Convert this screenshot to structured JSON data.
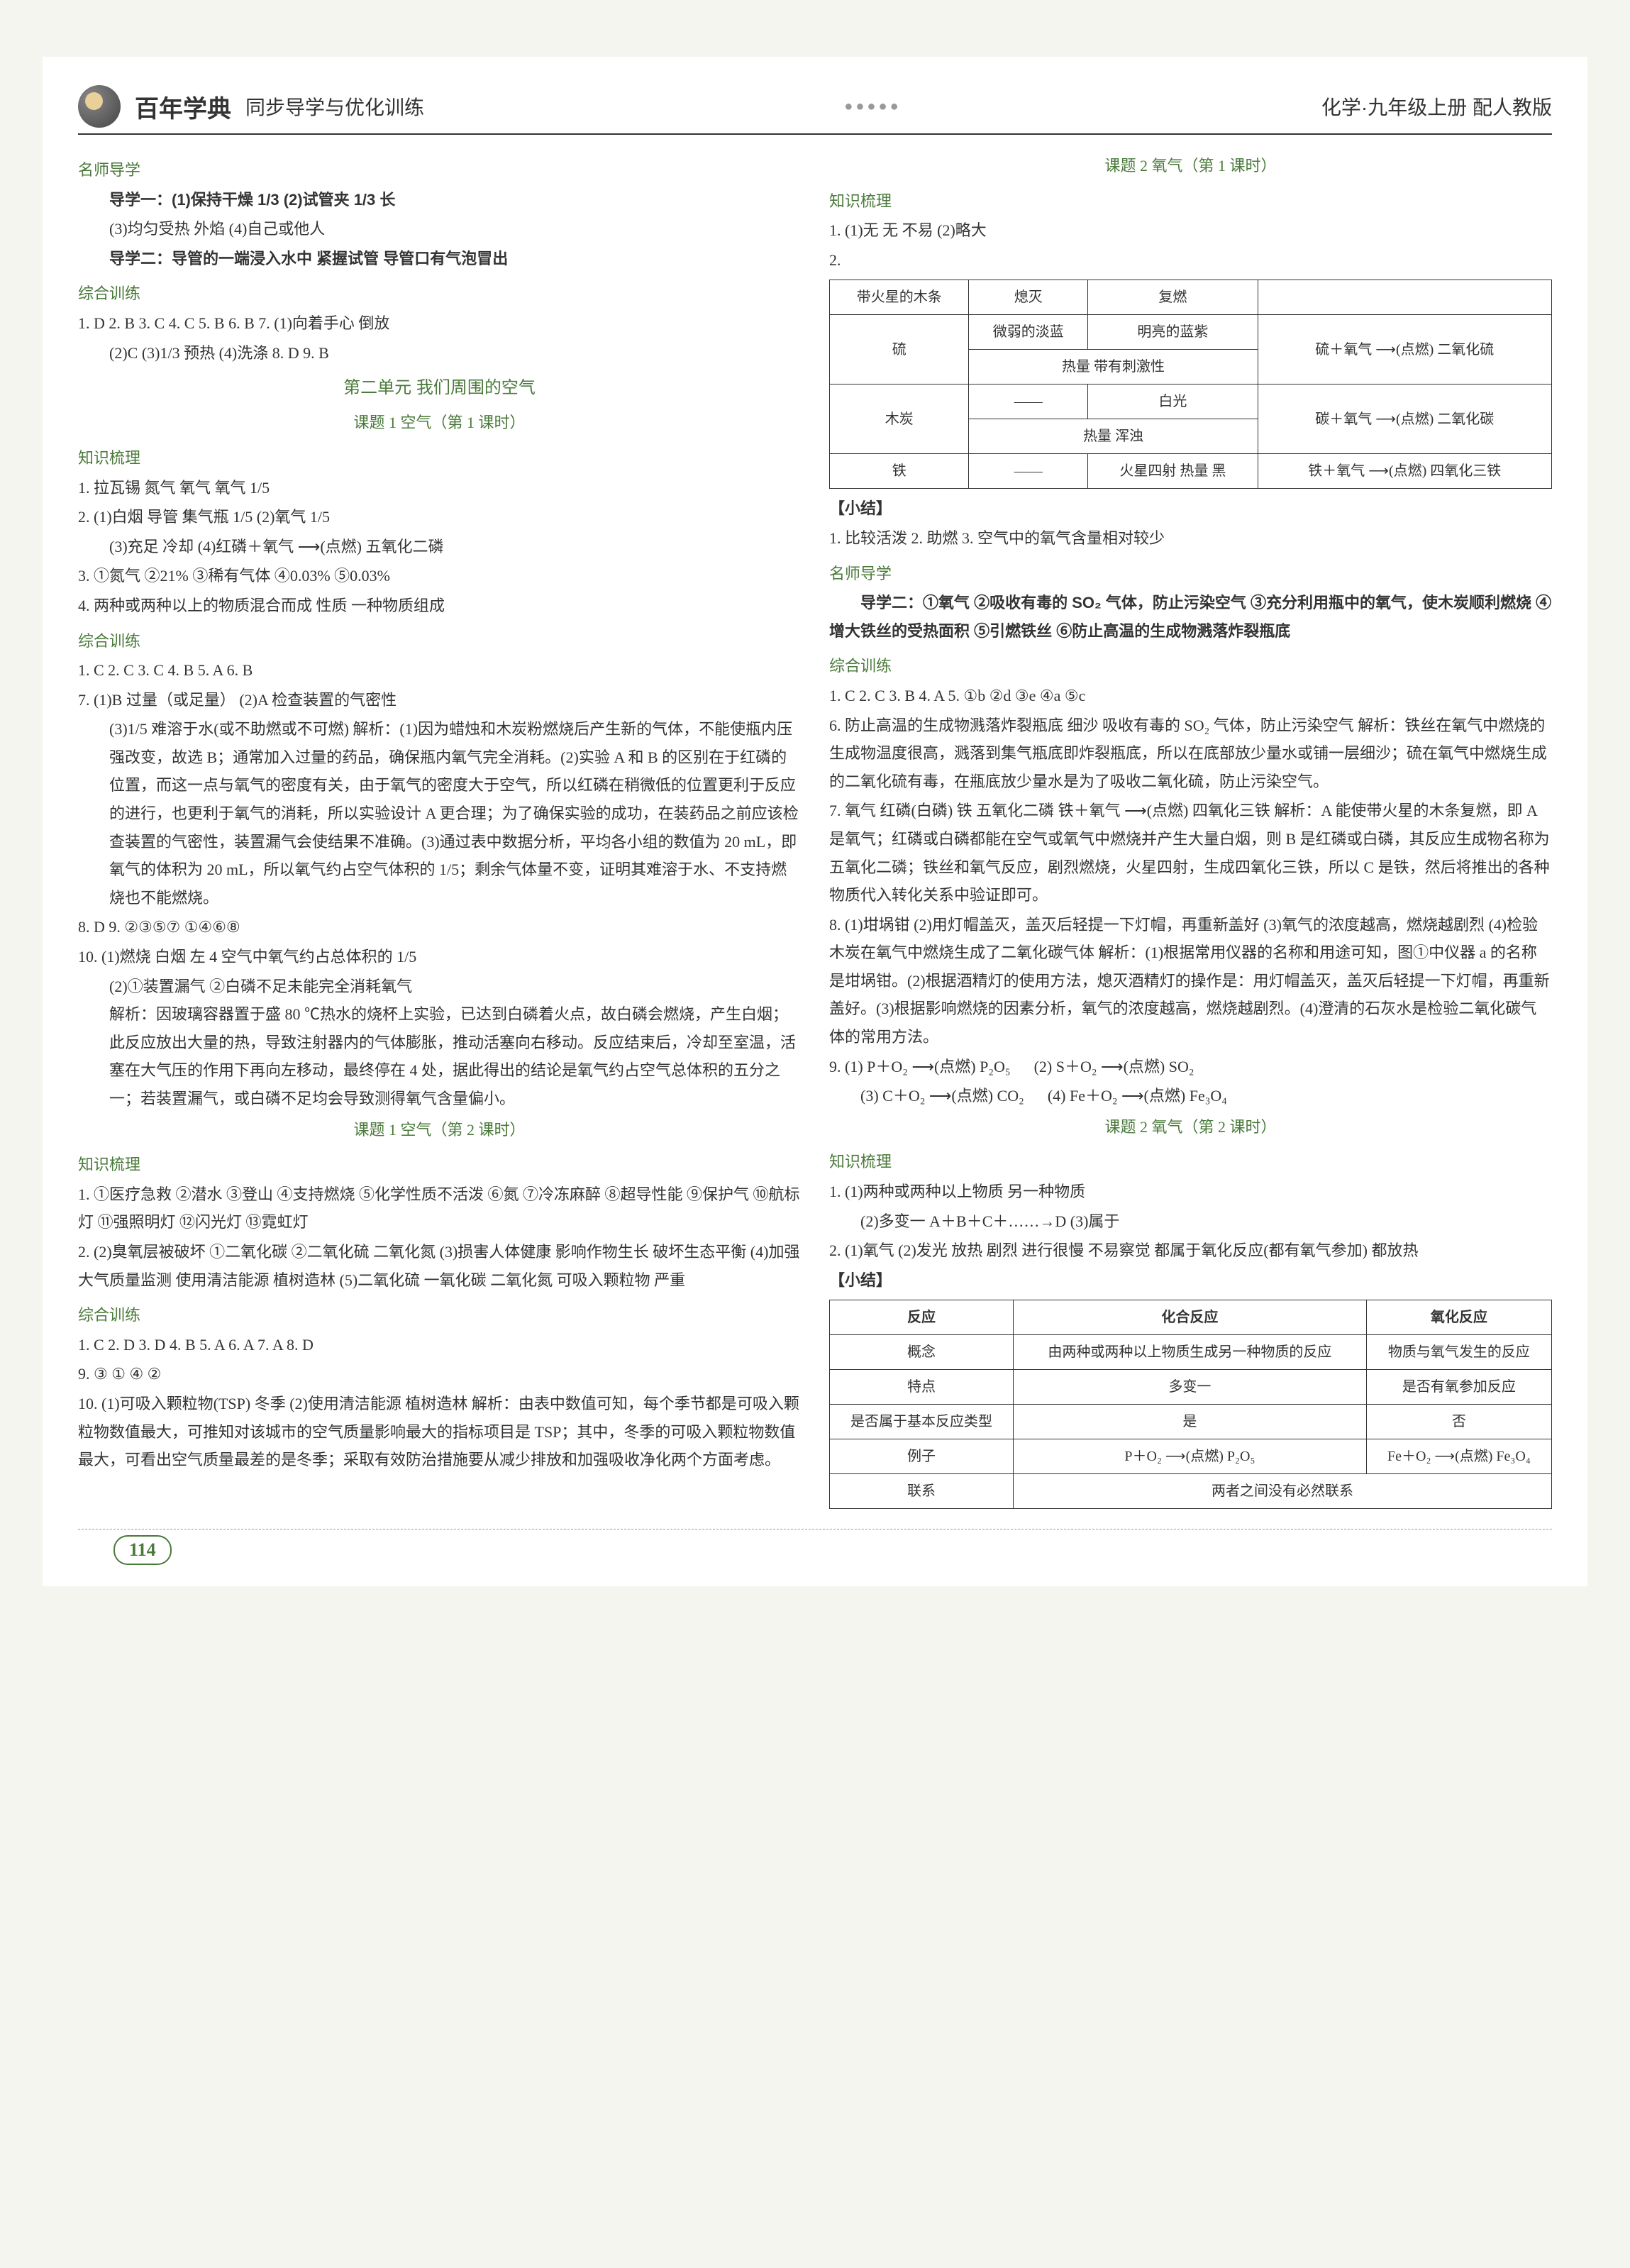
{
  "header": {
    "brand": "百年学典",
    "subtitle": "同步导学与优化训练",
    "dots": "●●●●●",
    "right": "化学·九年级上册  配人教版"
  },
  "left": {
    "s1_title": "名师导学",
    "s1_l1": "导学一：(1)保持干燥  1/3  (2)试管夹  1/3  长",
    "s1_l2": "(3)均匀受热  外焰  (4)自己或他人",
    "s1_l3": "导学二：导管的一端浸入水中  紧握试管  导管口有气泡冒出",
    "s2_title": "综合训练",
    "s2_l1": "1. D  2. B  3. C  4. C  5. B  6. B  7. (1)向着手心  倒放",
    "s2_l2": "(2)C  (3)1/3  预热  (4)洗涤  8. D  9. B",
    "unit1": "第二单元  我们周围的空气",
    "lesson1": "课题 1  空气（第 1 课时）",
    "s3_title": "知识梳理",
    "s3_l1": "1. 拉瓦锡  氮气  氧气  氧气  1/5",
    "s3_l2": "2. (1)白烟  导管  集气瓶  1/5  (2)氧气  1/5",
    "s3_l3": "(3)充足  冷却  (4)红磷＋氧气 ⟶(点燃) 五氧化二磷",
    "s3_l4": "3. ①氮气  ②21%  ③稀有气体  ④0.03%  ⑤0.03%",
    "s3_l5": "4. 两种或两种以上的物质混合而成  性质  一种物质组成",
    "s4_title": "综合训练",
    "s4_l1": "1. C  2. C  3. C  4. B  5. A  6. B",
    "s4_l2": "7. (1)B  过量（或足量）  (2)A  检查装置的气密性",
    "s4_l3": "(3)1/5  难溶于水(或不助燃或不可燃)  解析：(1)因为蜡烛和木炭粉燃烧后产生新的气体，不能使瓶内压强改变，故选 B；通常加入过量的药品，确保瓶内氧气完全消耗。(2)实验 A 和 B 的区别在于红磷的位置，而这一点与氧气的密度有关，由于氧气的密度大于空气，所以红磷在稍微低的位置更利于反应的进行，也更利于氧气的消耗，所以实验设计 A 更合理；为了确保实验的成功，在装药品之前应该检查装置的气密性，装置漏气会使结果不准确。(3)通过表中数据分析，平均各小组的数值为 20 mL，即氧气的体积为 20 mL，所以氧气约占空气体积的 1/5；剩余气体量不变，证明其难溶于水、不支持燃烧也不能燃烧。",
    "s4_l4": "8. D  9. ②③⑤⑦  ①④⑥⑧",
    "s4_l5": "10. (1)燃烧  白烟  左  4  空气中氧气约占总体积的 1/5",
    "s4_l6": "(2)①装置漏气  ②白磷不足未能完全消耗氧气",
    "s4_l7": "解析：因玻璃容器置于盛 80 ℃热水的烧杯上实验，已达到白磷着火点，故白磷会燃烧，产生白烟；此反应放出大量的热，导致注射器内的气体膨胀，推动活塞向右移动。反应结束后，冷却至室温，活塞在大气压的作用下再向左移动，最终停在 4 处，据此得出的结论是氧气约占空气总体积的五分之一；若装置漏气，或白磷不足均会导致测得氧气含量偏小。",
    "lesson2": "课题 1  空气（第 2 课时）",
    "s5_title": "知识梳理",
    "s5_l1": "1. ①医疗急救  ②潜水  ③登山  ④支持燃烧  ⑤化学性质不活泼  ⑥氮  ⑦冷冻麻醉  ⑧超导性能  ⑨保护气  ⑩航标灯  ⑪强照明灯  ⑫闪光灯  ⑬霓虹灯",
    "s5_l2": "2. (2)臭氧层被破坏  ①二氧化碳  ②二氧化硫  二氧化氮  (3)损害人体健康  影响作物生长  破坏生态平衡  (4)加强大气质量监测  使用清洁能源  植树造林  (5)二氧化硫  一氧化碳  二氧化氮  可吸入颗粒物  严重",
    "s6_title": "综合训练",
    "s6_l1": "1. C  2. D  3. D  4. B  5. A  6. A  7. A  8. D",
    "s6_l2": "9. ③  ①  ④  ②",
    "s6_l3": "10. (1)可吸入颗粒物(TSP)  冬季  (2)使用清洁能源  植树造林  解析：由表中数值可知，每个季节都是可吸入颗粒物数值最大，可推知对该城市的空气质量影响最大的指标项目是 TSP；其中，冬季的可吸入颗粒物数值最大，可看出空气质量最差的是冬季；采取有效防治措施要从减少排放和加强吸收净化两个方面考虑。"
  },
  "right": {
    "lesson1": "课题 2  氧气（第 1 课时）",
    "s1_title": "知识梳理",
    "s1_l1": "1. (1)无  无  不易  (2)略大",
    "s1_l2": "2.",
    "table1": {
      "rows": [
        [
          "带火星的木条",
          "熄灭",
          "复燃",
          ""
        ],
        [
          "硫",
          "微弱的淡蓝",
          "明亮的蓝紫",
          "硫＋氧气 ⟶(点燃) 二氧化硫"
        ],
        [
          "",
          "热量  带有刺激性",
          "",
          ""
        ],
        [
          "木炭",
          "——",
          "白光",
          "碳＋氧气 ⟶(点燃) 二氧化碳"
        ],
        [
          "",
          "热量  浑浊",
          "",
          ""
        ],
        [
          "铁",
          "——",
          "火星四射  热量  黑",
          "铁＋氧气 ⟶(点燃) 四氧化三铁"
        ]
      ]
    },
    "summary1_label": "【小结】",
    "summary1": "1. 比较活泼  2. 助燃  3. 空气中的氧气含量相对较少",
    "s2_title": "名师导学",
    "s2_l1": "导学二：①氧气  ②吸收有毒的 SO₂ 气体，防止污染空气  ③充分利用瓶中的氧气，使木炭顺利燃烧  ④增大铁丝的受热面积  ⑤引燃铁丝  ⑥防止高温的生成物溅落炸裂瓶底",
    "s3_title": "综合训练",
    "s3_l1": "1. C  2. C  3. B  4. A  5. ①b  ②d  ③e  ④a  ⑤c",
    "s3_l2": "6. 防止高温的生成物溅落炸裂瓶底  细沙  吸收有毒的 SO₂ 气体，防止污染空气  解析：铁丝在氧气中燃烧的生成物温度很高，溅落到集气瓶底即炸裂瓶底，所以在底部放少量水或铺一层细沙；硫在氧气中燃烧生成的二氧化硫有毒，在瓶底放少量水是为了吸收二氧化硫，防止污染空气。",
    "s3_l3": "7. 氧气  红磷(白磷)  铁  五氧化二磷  铁＋氧气 ⟶(点燃) 四氧化三铁  解析：A 能使带火星的木条复燃，即 A 是氧气；红磷或白磷都能在空气或氧气中燃烧并产生大量白烟，则 B 是红磷或白磷，其反应生成物名称为五氧化二磷；铁丝和氧气反应，剧烈燃烧，火星四射，生成四氧化三铁，所以 C 是铁，然后将推出的各种物质代入转化关系中验证即可。",
    "s3_l4": "8. (1)坩埚钳  (2)用灯帽盖灭，盖灭后轻提一下灯帽，再重新盖好  (3)氧气的浓度越高，燃烧越剧烈  (4)检验木炭在氧气中燃烧生成了二氧化碳气体  解析：(1)根据常用仪器的名称和用途可知，图①中仪器 a 的名称是坩埚钳。(2)根据酒精灯的使用方法，熄灭酒精灯的操作是：用灯帽盖灭，盖灭后轻提一下灯帽，再重新盖好。(3)根据影响燃烧的因素分析，氧气的浓度越高，燃烧越剧烈。(4)澄清的石灰水是检验二氧化碳气体的常用方法。",
    "s3_l5a": "9. (1) P＋O₂ ⟶(点燃) P₂O₅",
    "s3_l5b": "(2) S＋O₂ ⟶(点燃) SO₂",
    "s3_l5c": "(3) C＋O₂ ⟶(点燃) CO₂",
    "s3_l5d": "(4) Fe＋O₂ ⟶(点燃) Fe₃O₄",
    "lesson2": "课题 2  氧气（第 2 课时）",
    "s4_title": "知识梳理",
    "s4_l1": "1. (1)两种或两种以上物质  另一种物质",
    "s4_l2": "(2)多变一  A＋B＋C＋……→D  (3)属于",
    "s4_l3": "2. (1)氧气  (2)发光  放热  剧烈  进行很慢  不易察觉  都属于氧化反应(都有氧气参加)  都放热",
    "summary2_label": "【小结】",
    "table2": {
      "header": [
        "反应",
        "化合反应",
        "氧化反应"
      ],
      "rows": [
        [
          "概念",
          "由两种或两种以上物质生成另一种物质的反应",
          "物质与氧气发生的反应"
        ],
        [
          "特点",
          "多变一",
          "是否有氧参加反应"
        ],
        [
          "是否属于基本反应类型",
          "是",
          "否"
        ],
        [
          "例子",
          "P＋O₂ ⟶(点燃) P₂O₅",
          "Fe＋O₂ ⟶(点燃) Fe₃O₄"
        ],
        [
          "联系",
          "两者之间没有必然联系",
          ""
        ]
      ]
    }
  },
  "page_num": "114"
}
